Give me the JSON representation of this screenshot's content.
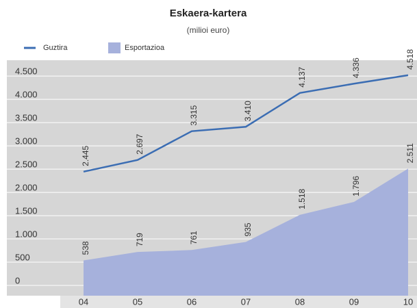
{
  "chart_data": {
    "type": "line-area",
    "title": "Eskaera-kartera",
    "subtitle": "(milioi euro)",
    "categories": [
      "04",
      "05",
      "06",
      "07",
      "08",
      "09",
      "10"
    ],
    "series": [
      {
        "name": "Guztira",
        "color": "#3b6db3",
        "kind": "line",
        "values": [
          2445,
          2697,
          3315,
          3410,
          4137,
          4336,
          4518
        ],
        "value_labels": [
          "2.445",
          "2.697",
          "3.315",
          "3.410",
          "4.137",
          "4.336",
          "4.518"
        ]
      },
      {
        "name": "Esportazioa",
        "color": "#a6b1dc",
        "kind": "area",
        "values": [
          538,
          719,
          761,
          935,
          1518,
          1796,
          2511
        ],
        "value_labels": [
          "538",
          "719",
          "761",
          "935",
          "1.518",
          "1.796",
          "2.511"
        ]
      }
    ],
    "ylim": [
      -220,
      4840
    ],
    "yticks": [
      0,
      500,
      {
        "value": 1000,
        "label": "1.000"
      },
      {
        "value": 1500,
        "label": "1.500"
      },
      {
        "value": 2000,
        "label": "2.000"
      },
      {
        "value": 2500,
        "label": "2.500"
      },
      {
        "value": 3000,
        "label": "3.000"
      },
      {
        "value": 3500,
        "label": "3.500"
      },
      {
        "value": 4000,
        "label": "4.000"
      },
      {
        "value": 4500,
        "label": "4.500"
      }
    ],
    "grid": true
  }
}
